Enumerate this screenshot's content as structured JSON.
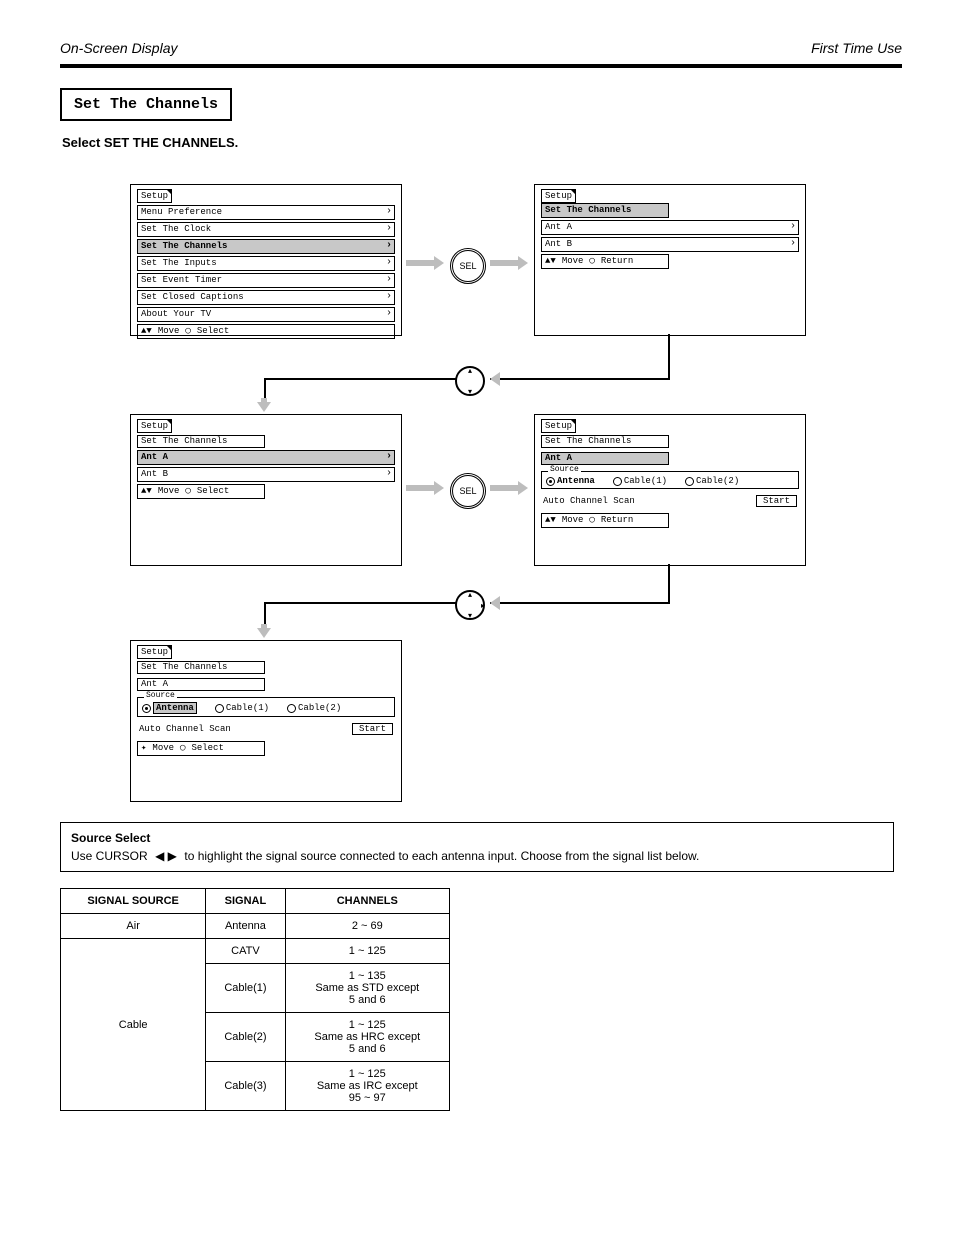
{
  "header": {
    "left": "On-Screen Display",
    "right": "First Time Use"
  },
  "section_title": "Set The Channels",
  "subtitle": "Select SET THE CHANNELS.",
  "panels": {
    "p1": {
      "tab": "Setup",
      "items": [
        "Menu Preference",
        "Set The Clock",
        "Set The Channels",
        "Set The Inputs",
        "Set Event Timer",
        "Set Closed Captions",
        "About Your TV"
      ],
      "selected_index": 2,
      "hint_move": "Move",
      "hint_action": "Select"
    },
    "p2": {
      "tab": "Setup",
      "sub": "Set The Channels",
      "items": [
        "Ant A",
        "Ant B"
      ],
      "selected_index": -1,
      "sub_selected": true,
      "hint_move": "Move",
      "hint_action": "Return"
    },
    "p3": {
      "tab": "Setup",
      "sub": "Set The Channels",
      "items": [
        "Ant A",
        "Ant B"
      ],
      "selected_index": 0,
      "hint_move": "Move",
      "hint_action": "Select"
    },
    "p4": {
      "tab": "Setup",
      "sub1": "Set The Channels",
      "sub2": "Ant A",
      "source_legend": "Source",
      "radios": [
        "Antenna",
        "Cable(1)",
        "Cable(2)"
      ],
      "radio_selected": 0,
      "scan_label": "Auto Channel Scan",
      "start": "Start",
      "hint_move": "Move",
      "hint_action": "Return"
    },
    "p5": {
      "tab": "Setup",
      "sub1": "Set The Channels",
      "sub2": "Ant A",
      "source_legend": "Source",
      "radios": [
        "Antenna",
        "Cable(1)",
        "Cable(2)"
      ],
      "radio_selected": 0,
      "scan_label": "Auto Channel Scan",
      "start": "Start",
      "hint_move": "Move",
      "hint_action": "Select"
    }
  },
  "flow_labels": {
    "select": "SEL",
    "cursor": ""
  },
  "source_instr": {
    "heading": "Source Select",
    "line1_a": "Use CURSOR ",
    "line1_b": " to highlight the signal source connected to each antenna input. Choose from the signal list below."
  },
  "signal_table": {
    "head": [
      "SIGNAL SOURCE",
      "SIGNAL",
      "CHANNELS"
    ],
    "rows": [
      {
        "src": "Air",
        "cells": [
          [
            "Antenna",
            "2 ~ 69"
          ]
        ]
      },
      {
        "src": "Cable",
        "cells": [
          [
            "CATV",
            "1 ~ 125"
          ],
          [
            "Cable(1)",
            "1 ~ 135\nSame as STD except\n5 and 6"
          ],
          [
            "Cable(2)",
            "1 ~ 125\nSame as HRC except\n5 and 6"
          ],
          [
            "Cable(3)",
            "1 ~ 125\nSame as IRC except\n95 ~ 97"
          ]
        ]
      }
    ]
  },
  "colors": {
    "arrow_gray": "#bdbdbd",
    "sel_gray": "#c8c8c8"
  }
}
